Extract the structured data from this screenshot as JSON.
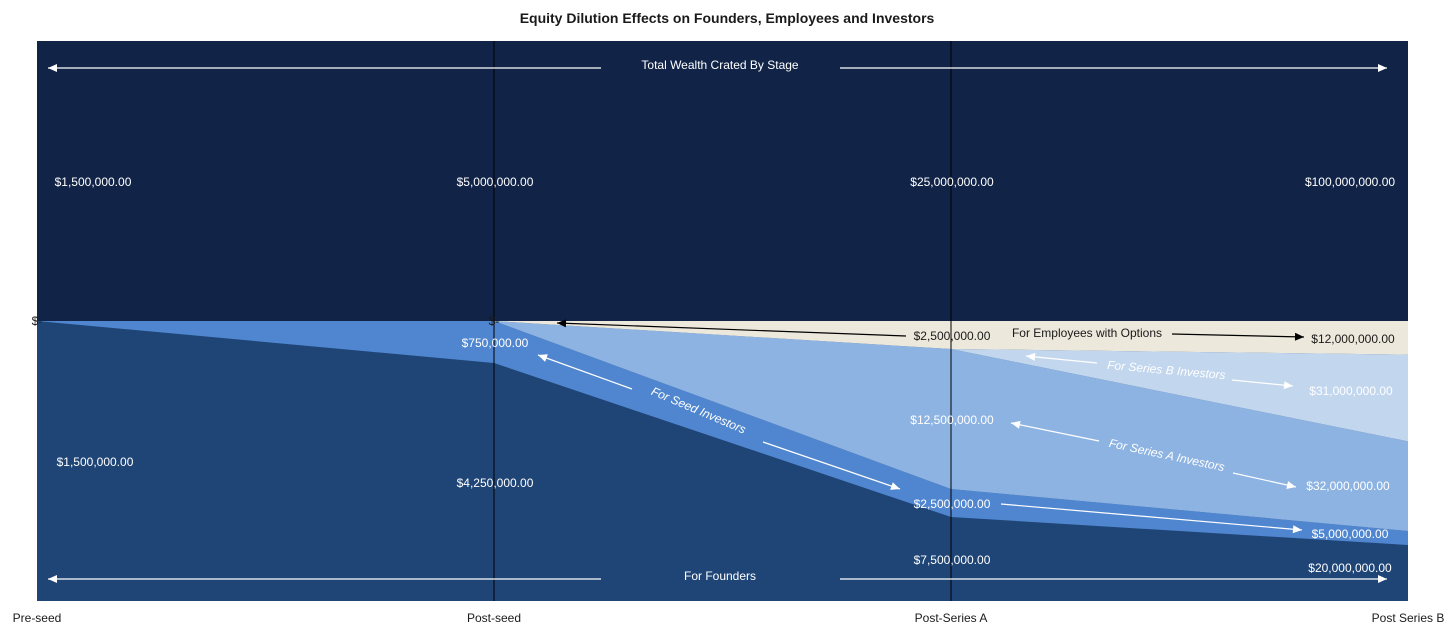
{
  "chart_data": {
    "type": "area",
    "title": "Equity Dilution Effects on Founders, Employees and Investors",
    "categories": [
      "Pre-seed",
      "Post-seed",
      "Post-Series A",
      "Post Series B"
    ],
    "total_wealth": {
      "label": "Total Wealth Crated By Stage",
      "values": [
        1500000,
        5000000,
        25000000,
        100000000
      ],
      "value_labels": [
        "$1,500,000.00",
        "$5,000,000.00",
        "$25,000,000.00",
        "$100,000,000.00"
      ]
    },
    "series": [
      {
        "name": "For Founders",
        "color": "#1f4577",
        "values": [
          1500000,
          4250000,
          7500000,
          20000000
        ],
        "value_labels": [
          "$1,500,000.00",
          "$4,250,000.00",
          "$7,500,000.00",
          "$20,000,000.00"
        ]
      },
      {
        "name": "For Seed Investors",
        "color": "#4f86cf",
        "values": [
          0,
          750000,
          2500000,
          5000000
        ],
        "value_labels": [
          "",
          "$750,000.00",
          "$2,500,000.00",
          "$5,000,000.00"
        ]
      },
      {
        "name": "For Series A Investors",
        "color": "#8db3e2",
        "values": [
          0,
          0,
          12500000,
          32000000
        ],
        "value_labels": [
          "",
          "",
          "$12,500,000.00",
          "$32,000,000.00"
        ]
      },
      {
        "name": "For Series B Investors",
        "color": "#c2d6ee",
        "values": [
          0,
          0,
          0,
          31000000
        ],
        "value_labels": [
          "",
          "",
          "",
          "$31,000,000.00"
        ]
      },
      {
        "name": "For Employees with Options",
        "color": "#ece8dc",
        "values": [
          0,
          0,
          2500000,
          12000000
        ],
        "value_labels": [
          "",
          "",
          "$2,500,000.00",
          "$12,000,000.00"
        ]
      }
    ],
    "zero_marker": "$-",
    "colors": {
      "background_band": "#112447",
      "axis_line": "#000000"
    }
  }
}
